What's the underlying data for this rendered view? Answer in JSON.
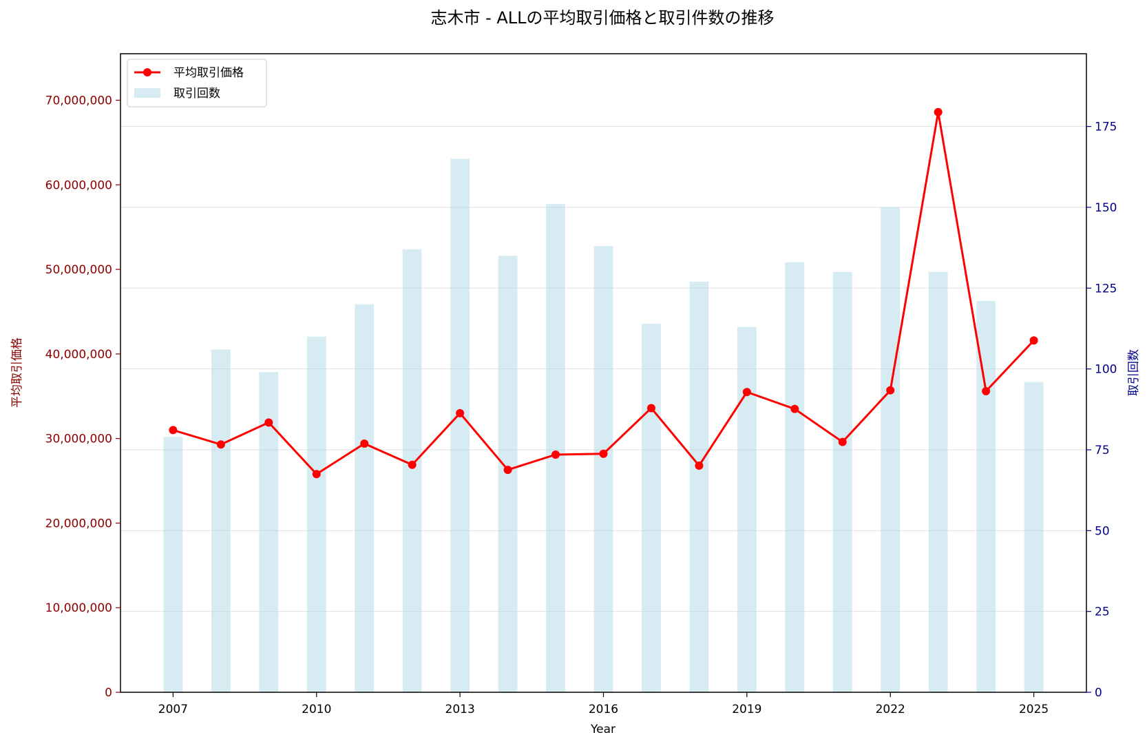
{
  "chart_data": {
    "type": "bar+line",
    "title": "志木市 - ALLの平均取引価格と取引件数の推移",
    "xlabel": "Year",
    "ylabel_left": "平均取引価格",
    "ylabel_right": "取引回数",
    "x": [
      2007,
      2008,
      2009,
      2010,
      2011,
      2012,
      2013,
      2014,
      2015,
      2016,
      2017,
      2018,
      2019,
      2020,
      2021,
      2022,
      2023,
      2024,
      2025
    ],
    "x_ticks": [
      "2007",
      "2010",
      "2013",
      "2016",
      "2019",
      "2022",
      "2025"
    ],
    "xlim": [
      2005.9,
      2026.1
    ],
    "left_axis": {
      "ylim": [
        0,
        75500000
      ],
      "ticks": [
        0,
        10000000,
        20000000,
        30000000,
        40000000,
        50000000,
        60000000,
        70000000
      ],
      "tick_labels": [
        "0",
        "10,000,000",
        "20,000,000",
        "30,000,000",
        "40,000,000",
        "50,000,000",
        "60,000,000",
        "70,000,000"
      ],
      "color": "#8b0000"
    },
    "right_axis": {
      "ylim": [
        0,
        197.5
      ],
      "ticks": [
        0,
        25,
        50,
        75,
        100,
        125,
        150,
        175
      ],
      "tick_labels": [
        "0",
        "25",
        "50",
        "75",
        "100",
        "125",
        "150",
        "175"
      ],
      "color": "#00008b"
    },
    "series": [
      {
        "name": "平均取引価格",
        "kind": "line",
        "axis": "left",
        "color": "#ff0000",
        "values": [
          31000000,
          29300000,
          31900000,
          25800000,
          29400000,
          26900000,
          33000000,
          26300000,
          28100000,
          28200000,
          33600000,
          26800000,
          35500000,
          33500000,
          29600000,
          35700000,
          68600000,
          35600000,
          41600000
        ]
      },
      {
        "name": "取引回数",
        "kind": "bar",
        "axis": "right",
        "color": "#add8e6",
        "values": [
          79,
          106,
          99,
          110,
          120,
          137,
          165,
          135,
          151,
          138,
          114,
          127,
          113,
          133,
          130,
          150,
          130,
          121,
          96
        ]
      }
    ],
    "grid": true,
    "legend_position": "top-left"
  }
}
